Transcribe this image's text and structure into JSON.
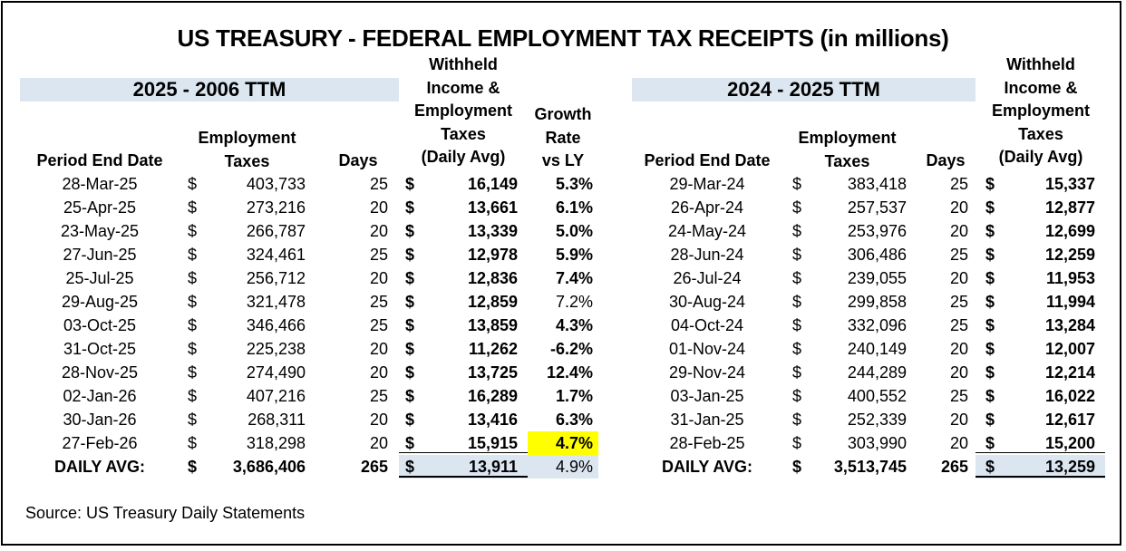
{
  "title": "US TREASURY - FEDERAL EMPLOYMENT TAX RECEIPTS (in millions)",
  "left_table": {
    "band_label": "2025 - 2006 TTM",
    "headers": {
      "period_end_date": "Period End Date",
      "employment_taxes": [
        "Employment",
        "Taxes"
      ],
      "days": "Days",
      "withheld": [
        "Withheld",
        "Income &",
        "Employment",
        "Taxes",
        "(Daily Avg)"
      ],
      "growth": [
        "Growth",
        "Rate",
        "vs LY"
      ]
    },
    "rows": [
      {
        "date": "28-Mar-25",
        "cur": "$",
        "taxes": "403,733",
        "days": "25",
        "cur2": "$",
        "daily_avg": "16,149",
        "growth": "5.3%"
      },
      {
        "date": "25-Apr-25",
        "cur": "$",
        "taxes": "273,216",
        "days": "20",
        "cur2": "$",
        "daily_avg": "13,661",
        "growth": "6.1%"
      },
      {
        "date": "23-May-25",
        "cur": "$",
        "taxes": "266,787",
        "days": "20",
        "cur2": "$",
        "daily_avg": "13,339",
        "growth": "5.0%"
      },
      {
        "date": "27-Jun-25",
        "cur": "$",
        "taxes": "324,461",
        "days": "25",
        "cur2": "$",
        "daily_avg": "12,978",
        "growth": "5.9%"
      },
      {
        "date": "25-Jul-25",
        "cur": "$",
        "taxes": "256,712",
        "days": "20",
        "cur2": "$",
        "daily_avg": "12,836",
        "growth": "7.4%"
      },
      {
        "date": "29-Aug-25",
        "cur": "$",
        "taxes": "321,478",
        "days": "25",
        "cur2": "$",
        "daily_avg": "12,859",
        "growth": "7.2%"
      },
      {
        "date": "03-Oct-25",
        "cur": "$",
        "taxes": "346,466",
        "days": "25",
        "cur2": "$",
        "daily_avg": "13,859",
        "growth": "4.3%"
      },
      {
        "date": "31-Oct-25",
        "cur": "$",
        "taxes": "225,238",
        "days": "20",
        "cur2": "$",
        "daily_avg": "11,262",
        "growth": "-6.2%"
      },
      {
        "date": "28-Nov-25",
        "cur": "$",
        "taxes": "274,490",
        "days": "20",
        "cur2": "$",
        "daily_avg": "13,725",
        "growth": "12.4%"
      },
      {
        "date": "02-Jan-26",
        "cur": "$",
        "taxes": "407,216",
        "days": "25",
        "cur2": "$",
        "daily_avg": "16,289",
        "growth": "1.7%"
      },
      {
        "date": "30-Jan-26",
        "cur": "$",
        "taxes": "268,311",
        "days": "20",
        "cur2": "$",
        "daily_avg": "13,416",
        "growth": "6.3%"
      },
      {
        "date": "27-Feb-26",
        "cur": "$",
        "taxes": "318,298",
        "days": "20",
        "cur2": "$",
        "daily_avg": "15,915",
        "growth": "4.7%"
      }
    ],
    "total": {
      "label": "DAILY AVG:",
      "cur": "$",
      "taxes": "3,686,406",
      "days": "265",
      "cur2": "$",
      "daily_avg": "13,911",
      "growth": "4.9%"
    }
  },
  "right_table": {
    "band_label": "2024 - 2025 TTM",
    "headers": {
      "period_end_date": "Period End Date",
      "employment_taxes": [
        "Employment",
        "Taxes"
      ],
      "days": "Days",
      "withheld": [
        "Withheld",
        "Income &",
        "Employment",
        "Taxes",
        "(Daily Avg)"
      ]
    },
    "rows": [
      {
        "date": "29-Mar-24",
        "cur": "$",
        "taxes": "383,418",
        "days": "25",
        "cur2": "$",
        "daily_avg": "15,337"
      },
      {
        "date": "26-Apr-24",
        "cur": "$",
        "taxes": "257,537",
        "days": "20",
        "cur2": "$",
        "daily_avg": "12,877"
      },
      {
        "date": "24-May-24",
        "cur": "$",
        "taxes": "253,976",
        "days": "20",
        "cur2": "$",
        "daily_avg": "12,699"
      },
      {
        "date": "28-Jun-24",
        "cur": "$",
        "taxes": "306,486",
        "days": "25",
        "cur2": "$",
        "daily_avg": "12,259"
      },
      {
        "date": "26-Jul-24",
        "cur": "$",
        "taxes": "239,055",
        "days": "20",
        "cur2": "$",
        "daily_avg": "11,953"
      },
      {
        "date": "30-Aug-24",
        "cur": "$",
        "taxes": "299,858",
        "days": "25",
        "cur2": "$",
        "daily_avg": "11,994"
      },
      {
        "date": "04-Oct-24",
        "cur": "$",
        "taxes": "332,096",
        "days": "25",
        "cur2": "$",
        "daily_avg": "13,284"
      },
      {
        "date": "01-Nov-24",
        "cur": "$",
        "taxes": "240,149",
        "days": "20",
        "cur2": "$",
        "daily_avg": "12,007"
      },
      {
        "date": "29-Nov-24",
        "cur": "$",
        "taxes": "244,289",
        "days": "20",
        "cur2": "$",
        "daily_avg": "12,214"
      },
      {
        "date": "03-Jan-25",
        "cur": "$",
        "taxes": "400,552",
        "days": "25",
        "cur2": "$",
        "daily_avg": "16,022"
      },
      {
        "date": "31-Jan-25",
        "cur": "$",
        "taxes": "252,339",
        "days": "20",
        "cur2": "$",
        "daily_avg": "12,617"
      },
      {
        "date": "28-Feb-25",
        "cur": "$",
        "taxes": "303,990",
        "days": "20",
        "cur2": "$",
        "daily_avg": "15,200"
      }
    ],
    "total": {
      "label": "DAILY AVG:",
      "cur": "$",
      "taxes": "3,513,745",
      "days": "265",
      "cur2": "$",
      "daily_avg": "13,259"
    }
  },
  "highlight_color": "#ffff00",
  "band_color": "#dce6f1",
  "source": "Source: US Treasury Daily Statements"
}
